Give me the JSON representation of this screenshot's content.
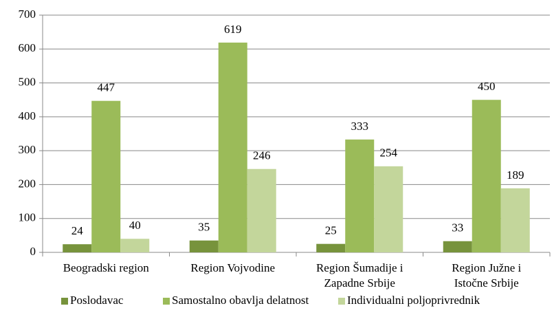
{
  "chart_data": {
    "type": "bar",
    "categories": [
      [
        "Beogradski region"
      ],
      [
        "Region Vojvodine"
      ],
      [
        "Region Šumadije i",
        "Zapadne Srbije"
      ],
      [
        "Region Južne i",
        "Istočne Srbije"
      ]
    ],
    "series": [
      {
        "name": "Poslodavac",
        "color": "#77933c",
        "values": [
          24,
          35,
          25,
          33
        ]
      },
      {
        "name": "Samostalno obavlja delatnost",
        "color": "#9bbb59",
        "values": [
          447,
          619,
          333,
          450
        ]
      },
      {
        "name": "Individualni poljoprivrednik",
        "color": "#c3d69b",
        "values": [
          40,
          246,
          254,
          189
        ]
      }
    ],
    "ylim": [
      0,
      700
    ],
    "yticks": [
      0,
      100,
      200,
      300,
      400,
      500,
      600,
      700
    ],
    "grid": true,
    "legend": "bottom"
  }
}
